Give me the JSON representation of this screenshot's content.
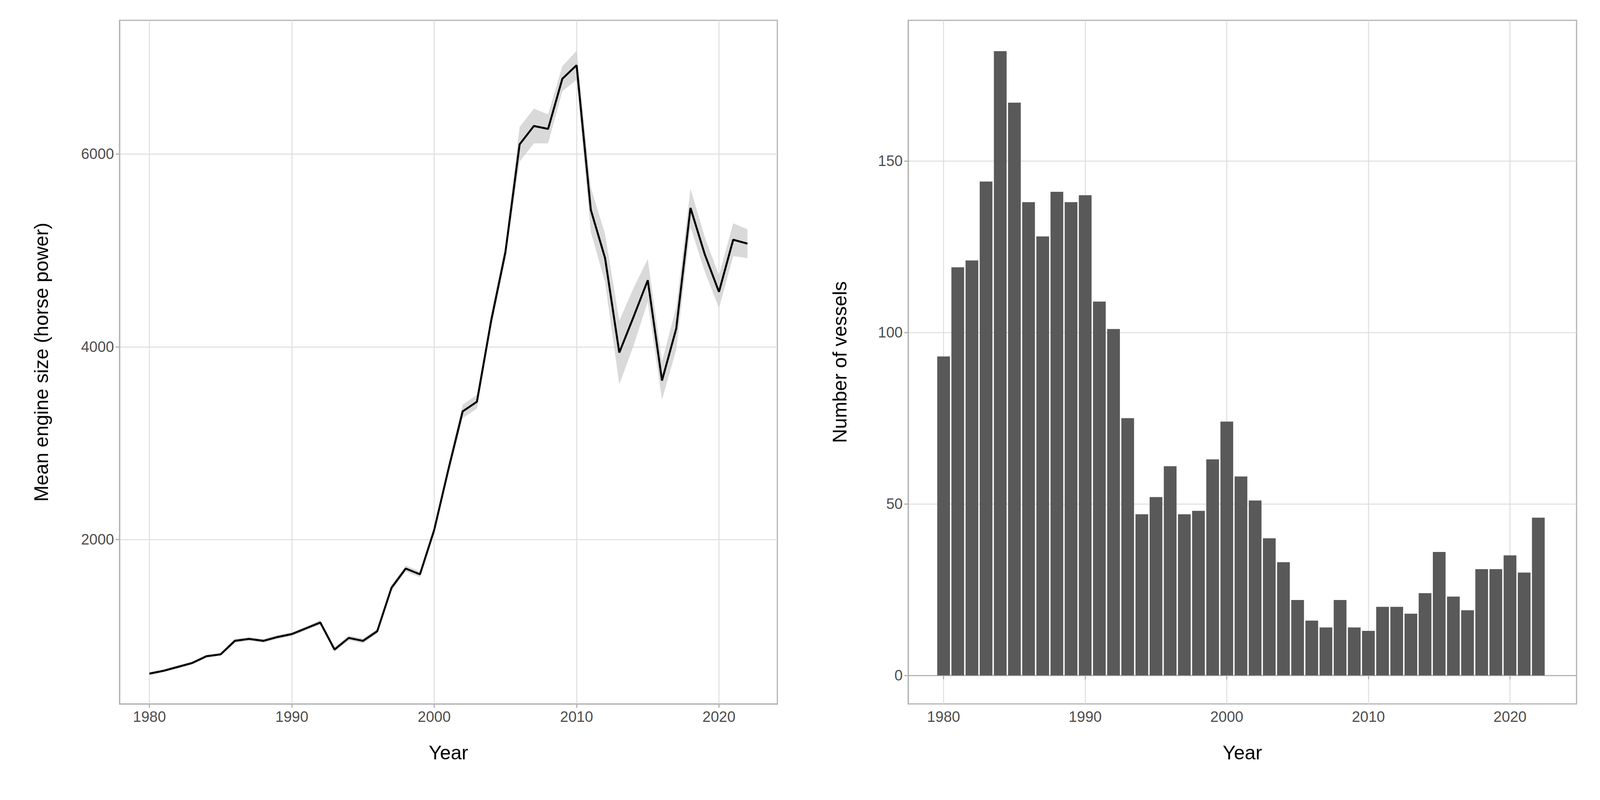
{
  "chart_data": [
    {
      "type": "line",
      "xlabel": "Year",
      "ylabel": "Mean engine size (horse power)",
      "x": [
        1980,
        1981,
        1982,
        1983,
        1984,
        1985,
        1986,
        1987,
        1988,
        1989,
        1990,
        1991,
        1992,
        1993,
        1994,
        1995,
        1996,
        1997,
        1998,
        1999,
        2000,
        2001,
        2002,
        2003,
        2004,
        2005,
        2006,
        2007,
        2008,
        2009,
        2010,
        2011,
        2012,
        2013,
        2014,
        2015,
        2016,
        2017,
        2018,
        2019,
        2020,
        2021,
        2022
      ],
      "values": [
        610,
        640,
        680,
        720,
        790,
        810,
        950,
        970,
        950,
        990,
        1020,
        1080,
        1140,
        860,
        980,
        950,
        1050,
        1500,
        1700,
        1640,
        2100,
        2730,
        3330,
        3430,
        4270,
        4980,
        6100,
        6290,
        6260,
        6780,
        6920,
        5420,
        4920,
        3940,
        4310,
        4690,
        3650,
        4190,
        5440,
        4960,
        4570,
        5110,
        5070
      ],
      "lower": [
        595,
        625,
        665,
        705,
        775,
        795,
        930,
        950,
        930,
        970,
        1000,
        1060,
        1115,
        835,
        955,
        925,
        1025,
        1470,
        1670,
        1610,
        2060,
        2680,
        3260,
        3360,
        4200,
        4910,
        5920,
        6110,
        6110,
        6650,
        6770,
        5190,
        4670,
        3610,
        4010,
        4470,
        3450,
        3970,
        5240,
        4780,
        4400,
        4940,
        4920
      ],
      "upper": [
        625,
        655,
        695,
        735,
        805,
        825,
        970,
        990,
        970,
        1010,
        1040,
        1100,
        1165,
        885,
        1005,
        975,
        1075,
        1530,
        1730,
        1670,
        2140,
        2780,
        3400,
        3500,
        4340,
        5050,
        6280,
        6470,
        6410,
        6910,
        7070,
        5650,
        5170,
        4270,
        4610,
        4910,
        3850,
        4410,
        5640,
        5140,
        4740,
        5280,
        5220
      ],
      "color": "#000000",
      "xlim": [
        1977.9,
        2024.1
      ],
      "xticks": [
        1980,
        1990,
        2000,
        2010,
        2020
      ],
      "ylim": [
        296,
        7386
      ],
      "yticks": [
        2000,
        4000,
        6000
      ],
      "grid": true
    },
    {
      "type": "bar",
      "xlabel": "Year",
      "ylabel": "Number of vessels",
      "x": [
        1980,
        1981,
        1982,
        1983,
        1984,
        1985,
        1986,
        1987,
        1988,
        1989,
        1990,
        1991,
        1992,
        1993,
        1994,
        1995,
        1996,
        1997,
        1998,
        1999,
        2000,
        2001,
        2002,
        2003,
        2004,
        2005,
        2006,
        2007,
        2008,
        2009,
        2010,
        2011,
        2012,
        2013,
        2014,
        2015,
        2016,
        2017,
        2018,
        2019,
        2020,
        2021,
        2022
      ],
      "values": [
        93,
        119,
        121,
        144,
        182,
        167,
        138,
        128,
        141,
        138,
        140,
        109,
        101,
        75,
        47,
        52,
        61,
        47,
        48,
        63,
        74,
        58,
        51,
        40,
        33,
        22,
        16,
        14,
        22,
        14,
        13,
        20,
        20,
        18,
        24,
        36,
        23,
        19,
        31,
        31,
        35,
        30,
        46
      ],
      "color": "#595959",
      "xlim": [
        1977.5,
        2024.7
      ],
      "xticks": [
        1980,
        1990,
        2000,
        2010,
        2020
      ],
      "ylim": [
        -8.3,
        191
      ],
      "yticks": [
        0,
        50,
        100,
        150
      ],
      "grid": true
    }
  ]
}
